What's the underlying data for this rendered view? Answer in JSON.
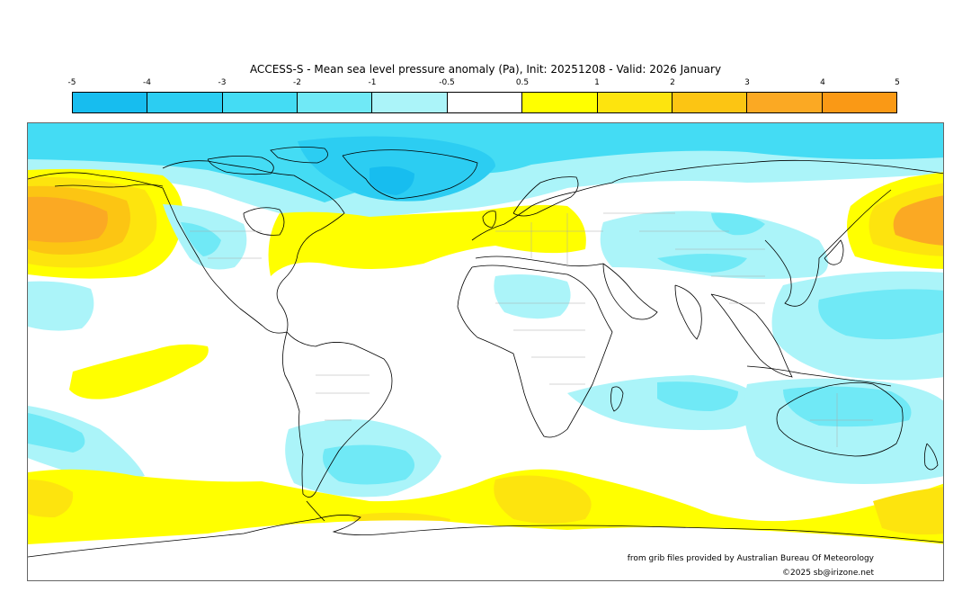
{
  "map": {
    "title": "ACCESS-S - Mean sea level pressure anomaly (Pa), Init: 20251208 - Valid: 2026 January",
    "colorbar": {
      "ticks": [
        "-5",
        "-4",
        "-3",
        "-2",
        "-1",
        "-0.5",
        "0.5",
        "1",
        "2",
        "3",
        "4",
        "5"
      ],
      "colors": [
        "#17bdef",
        "#2ccdf2",
        "#44dcf4",
        "#70e9f6",
        "#abf4f9",
        "#ffffff",
        "#ffff00",
        "#fde40e",
        "#fcc513",
        "#fba923",
        "#fa9915"
      ]
    },
    "credits": {
      "source": "from grib files provided by Australian Bureau Of Meteorology",
      "copyright": "©2025 sb@irizone.net"
    },
    "regions": [
      {
        "name": "Arctic / Greenland",
        "level": "-2 to -4"
      },
      {
        "name": "North Pacific / Alaska",
        "level": "+2 to +4"
      },
      {
        "name": "Kamchatka / NW Pacific",
        "level": "+2 to +4"
      },
      {
        "name": "North Atlantic band",
        "level": "+0.5 to +1"
      },
      {
        "name": "Europe",
        "level": "+0.5 to +1"
      },
      {
        "name": "Southern Ocean ring",
        "level": "+0.5 to +2"
      },
      {
        "name": "South Atlantic off Argentina",
        "level": "-1 to -2"
      },
      {
        "name": "Australia / Indian Ocean",
        "level": "-0.5 to -1"
      },
      {
        "name": "Western Pacific",
        "level": "-1 to -2"
      }
    ]
  }
}
